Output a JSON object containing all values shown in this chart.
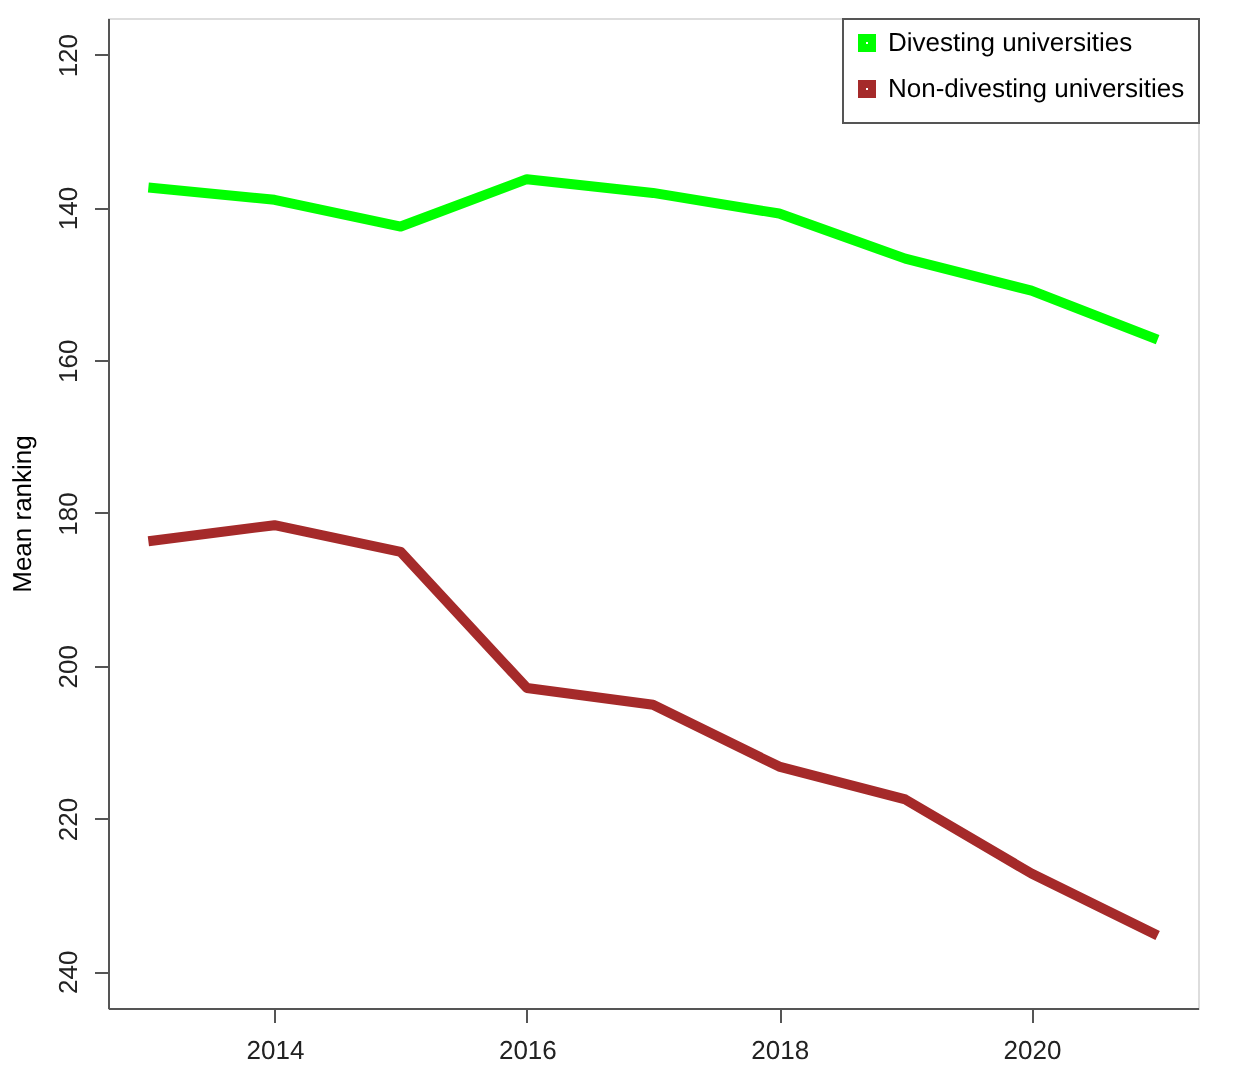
{
  "chart_data": {
    "type": "line",
    "ylabel": "Mean ranking",
    "x": [
      2013,
      2014,
      2015,
      2016,
      2017,
      2018,
      2019,
      2020,
      2021
    ],
    "series": [
      {
        "name": "Divesting universities",
        "color": "#00ff00",
        "values": [
          137.4,
          139.0,
          142.5,
          136.3,
          138.1,
          140.8,
          146.7,
          150.9,
          157.3
        ]
      },
      {
        "name": "Non-divesting universities",
        "color": "#a52a2a",
        "values": [
          183.7,
          181.6,
          185.1,
          202.9,
          205.1,
          213.2,
          217.5,
          227.2,
          235.3
        ]
      }
    ],
    "xlim": [
      2012.68,
      2021.32
    ],
    "xticks": [
      2014,
      2016,
      2018,
      2020
    ],
    "ylim": [
      244.8,
      115.2
    ],
    "yticks": [
      120,
      140,
      160,
      180,
      200,
      220,
      240
    ],
    "grid": false,
    "legend": "top right",
    "marker": "none",
    "line_style": "solid"
  }
}
